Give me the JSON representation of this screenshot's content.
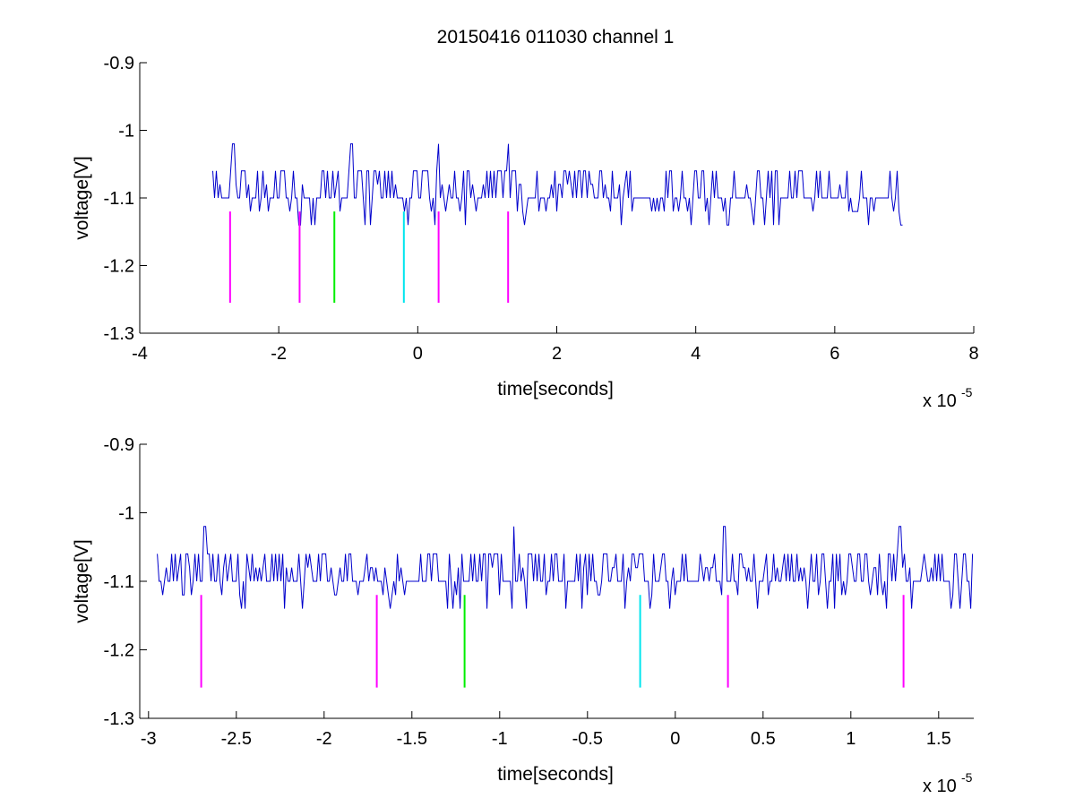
{
  "figure": {
    "title": "20150416 011030 channel 1"
  },
  "chart_data": [
    {
      "type": "line",
      "title": "20150416 011030 channel 1",
      "xlabel": "time[seconds]",
      "ylabel": "voltage[V]",
      "x_multiplier_label": "x 10",
      "x_multiplier_exponent": "-5",
      "xlim": [
        -4,
        8
      ],
      "ylim": [
        -1.3,
        -0.9
      ],
      "x_ticks": [
        -4,
        -2,
        0,
        2,
        4,
        6,
        8
      ],
      "x_tick_labels": [
        "-4",
        "-2",
        "0",
        "2",
        "4",
        "6",
        "8"
      ],
      "y_ticks": [
        -1.3,
        -1.2,
        -1.1,
        -1.0,
        -0.9
      ],
      "y_tick_labels": [
        "-1.3",
        "-1.2",
        "-1.1",
        "-1",
        "-0.9"
      ],
      "grid": false,
      "signal": {
        "color": "#0000cc",
        "x_start": -2.95,
        "x_end": 7.0,
        "baseline": -1.1,
        "levels": [
          -1.14,
          -1.12,
          -1.1,
          -1.08,
          -1.06
        ],
        "spikes": [
          {
            "x": -2.65,
            "y": -1.02
          },
          {
            "x": -0.95,
            "y": -1.02
          },
          {
            "x": 0.3,
            "y": -1.02
          },
          {
            "x": 1.3,
            "y": -1.02
          },
          {
            "x": 3.05,
            "y": -1.06
          }
        ]
      },
      "markers": [
        {
          "x": -2.7,
          "y_top": -1.12,
          "y_bottom": -1.255,
          "color": "#ff00ff"
        },
        {
          "x": -1.7,
          "y_top": -1.12,
          "y_bottom": -1.255,
          "color": "#ff00ff"
        },
        {
          "x": -1.2,
          "y_top": -1.12,
          "y_bottom": -1.255,
          "color": "#00ee00"
        },
        {
          "x": -0.2,
          "y_top": -1.12,
          "y_bottom": -1.255,
          "color": "#00e5ee"
        },
        {
          "x": 0.3,
          "y_top": -1.12,
          "y_bottom": -1.255,
          "color": "#ff00ff"
        },
        {
          "x": 1.3,
          "y_top": -1.12,
          "y_bottom": -1.255,
          "color": "#ff00ff"
        }
      ]
    },
    {
      "type": "line",
      "title": "",
      "xlabel": "time[seconds]",
      "ylabel": "voltage[V]",
      "x_multiplier_label": "x 10",
      "x_multiplier_exponent": "-5",
      "xlim": [
        -3.05,
        1.7
      ],
      "ylim": [
        -1.3,
        -0.9
      ],
      "x_ticks": [
        -3,
        -2.5,
        -2,
        -1.5,
        -1,
        -0.5,
        0,
        0.5,
        1,
        1.5
      ],
      "x_tick_labels": [
        "-3",
        "-2.5",
        "-2",
        "-1.5",
        "-1",
        "-0.5",
        "0",
        "0.5",
        "1",
        "1.5"
      ],
      "y_ticks": [
        -1.3,
        -1.2,
        -1.1,
        -1.0,
        -0.9
      ],
      "y_tick_labels": [
        "-1.3",
        "-1.2",
        "-1.1",
        "-1",
        "-0.9"
      ],
      "grid": false,
      "signal": {
        "color": "#0000cc",
        "x_start": -2.95,
        "x_end": 1.7,
        "baseline": -1.1,
        "levels": [
          -1.14,
          -1.12,
          -1.1,
          -1.08,
          -1.06
        ],
        "spikes": [
          {
            "x": -2.68,
            "y": -1.02
          },
          {
            "x": -0.92,
            "y": -1.02
          },
          {
            "x": 0.28,
            "y": -1.02
          },
          {
            "x": 1.28,
            "y": -1.02
          }
        ]
      },
      "markers": [
        {
          "x": -2.7,
          "y_top": -1.12,
          "y_bottom": -1.255,
          "color": "#ff00ff"
        },
        {
          "x": -1.7,
          "y_top": -1.12,
          "y_bottom": -1.255,
          "color": "#ff00ff"
        },
        {
          "x": -1.2,
          "y_top": -1.12,
          "y_bottom": -1.255,
          "color": "#00ee00"
        },
        {
          "x": -0.2,
          "y_top": -1.12,
          "y_bottom": -1.255,
          "color": "#00e5ee"
        },
        {
          "x": 0.3,
          "y_top": -1.12,
          "y_bottom": -1.255,
          "color": "#ff00ff"
        },
        {
          "x": 1.3,
          "y_top": -1.12,
          "y_bottom": -1.255,
          "color": "#ff00ff"
        }
      ]
    }
  ]
}
